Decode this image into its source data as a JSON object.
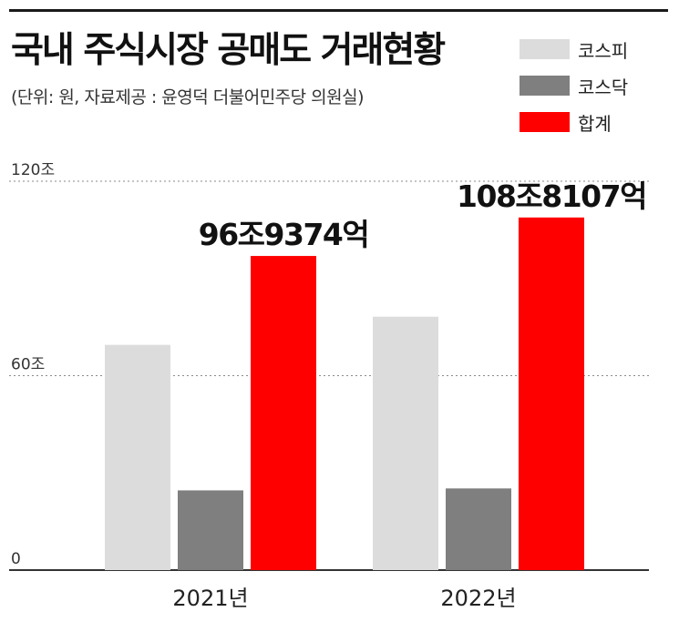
{
  "title": "국내 주식시장 공매도 거래현황",
  "subtitle": "(단위: 원, 자료제공 : 윤영덕 더불어민주당 의원실)",
  "colors": {
    "kospi": "#dcdcdc",
    "kosdaq": "#7f7f7f",
    "total": "#ff0000"
  },
  "legend": [
    {
      "label": "코스피",
      "color_key": "kospi"
    },
    {
      "label": "코스닥",
      "color_key": "kosdaq"
    },
    {
      "label": "합계",
      "color_key": "total"
    }
  ],
  "chart_data": {
    "type": "bar",
    "title": "국내 주식시장 공매도 거래현황",
    "unit_note": "(단위: 원, 자료제공 : 윤영덕 더불어민주당 의원실)",
    "categories": [
      "2021년",
      "2022년"
    ],
    "series": [
      {
        "name": "코스피",
        "color_key": "kospi",
        "values": [
          69.5,
          78.2
        ]
      },
      {
        "name": "코스닥",
        "color_key": "kosdaq",
        "values": [
          24.6,
          25.2
        ]
      },
      {
        "name": "합계",
        "color_key": "total",
        "values": [
          96.9374,
          108.8107
        ],
        "data_labels": [
          "96조9374억",
          "108조8107억"
        ]
      }
    ],
    "ylim": [
      0,
      120
    ],
    "yticks": [
      {
        "value": 0,
        "label": "0"
      },
      {
        "value": 60,
        "label": "60조"
      },
      {
        "value": 120,
        "label": "120조"
      }
    ],
    "grid": true,
    "legend_position": "top-right"
  }
}
